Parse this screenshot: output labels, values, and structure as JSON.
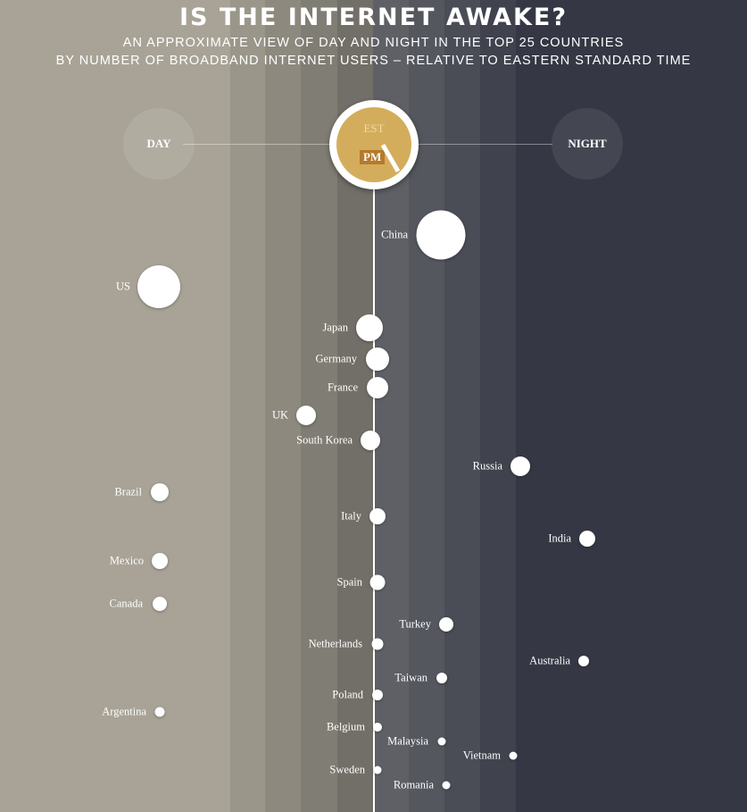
{
  "title": "IS THE INTERNET AWAKE?",
  "subtitle_line1": "AN APPROXIMATE VIEW OF DAY AND NIGHT IN THE TOP 25 COUNTRIES",
  "subtitle_line2": "BY NUMBER OF BROADBAND INTERNET USERS – RELATIVE TO EASTERN STANDARD TIME",
  "day_label": "DAY",
  "night_label": "NIGHT",
  "clock": {
    "zone": "EST",
    "period": "PM"
  },
  "colors": {
    "day": "#a8a396",
    "night": "#353844",
    "clock": "#d4ad5c"
  },
  "countries": [
    {
      "name": "China"
    },
    {
      "name": "US"
    },
    {
      "name": "Japan"
    },
    {
      "name": "Germany"
    },
    {
      "name": "France"
    },
    {
      "name": "UK"
    },
    {
      "name": "South Korea"
    },
    {
      "name": "Russia"
    },
    {
      "name": "Brazil"
    },
    {
      "name": "Italy"
    },
    {
      "name": "India"
    },
    {
      "name": "Mexico"
    },
    {
      "name": "Spain"
    },
    {
      "name": "Canada"
    },
    {
      "name": "Turkey"
    },
    {
      "name": "Netherlands"
    },
    {
      "name": "Australia"
    },
    {
      "name": "Taiwan"
    },
    {
      "name": "Poland"
    },
    {
      "name": "Argentina"
    },
    {
      "name": "Belgium"
    },
    {
      "name": "Malaysia"
    },
    {
      "name": "Vietnam"
    },
    {
      "name": "Sweden"
    },
    {
      "name": "Romania"
    }
  ]
}
